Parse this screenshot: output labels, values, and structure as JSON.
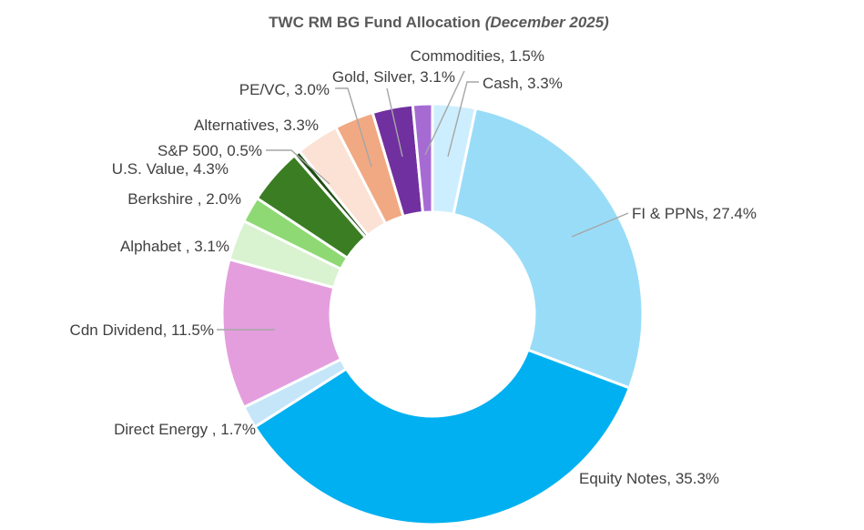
{
  "chart_data": {
    "type": "pie",
    "variant": "doughnut",
    "title": "TWC RM BG Fund Allocation",
    "subtitle": "(December 2025)",
    "slices": [
      {
        "label": "Cash",
        "value": 3.3,
        "display": "Cash, 3.3%",
        "color": "#cdeefe"
      },
      {
        "label": "FI & PPNs",
        "value": 27.4,
        "display": "FI & PPNs, 27.4%",
        "color": "#99dcf8"
      },
      {
        "label": "Equity Notes",
        "value": 35.3,
        "display": "Equity Notes, 35.3%",
        "color": "#00b0f0"
      },
      {
        "label": "Direct Energy",
        "value": 1.7,
        "display": "Direct Energy , 1.7%",
        "color": "#c5e6f8"
      },
      {
        "label": "Cdn Dividend",
        "value": 11.5,
        "display": "Cdn Dividend, 11.5%",
        "color": "#e49edd"
      },
      {
        "label": "Alphabet",
        "value": 3.1,
        "display": "Alphabet , 3.1%",
        "color": "#d9f2d0"
      },
      {
        "label": "Berkshire",
        "value": 2.0,
        "display": "Berkshire , 2.0%",
        "color": "#8ed973"
      },
      {
        "label": "U.S. Value",
        "value": 4.3,
        "display": "U.S. Value, 4.3%",
        "color": "#3a7d22"
      },
      {
        "label": "S&P 500",
        "value": 0.5,
        "display": "S&P 500, 0.5%",
        "color": "#1e4d14"
      },
      {
        "label": "Alternatives",
        "value": 3.3,
        "display": "Alternatives, 3.3%",
        "color": "#fbe2d5"
      },
      {
        "label": "PE/VC",
        "value": 3.0,
        "display": "PE/VC, 3.0%",
        "color": "#f1a983"
      },
      {
        "label": "Gold, Silver",
        "value": 3.1,
        "display": "Gold, Silver, 3.1%",
        "color": "#7030a0"
      },
      {
        "label": "Commodities",
        "value": 1.5,
        "display": "Commodities, 1.5%",
        "color": "#a66bd3"
      }
    ]
  }
}
